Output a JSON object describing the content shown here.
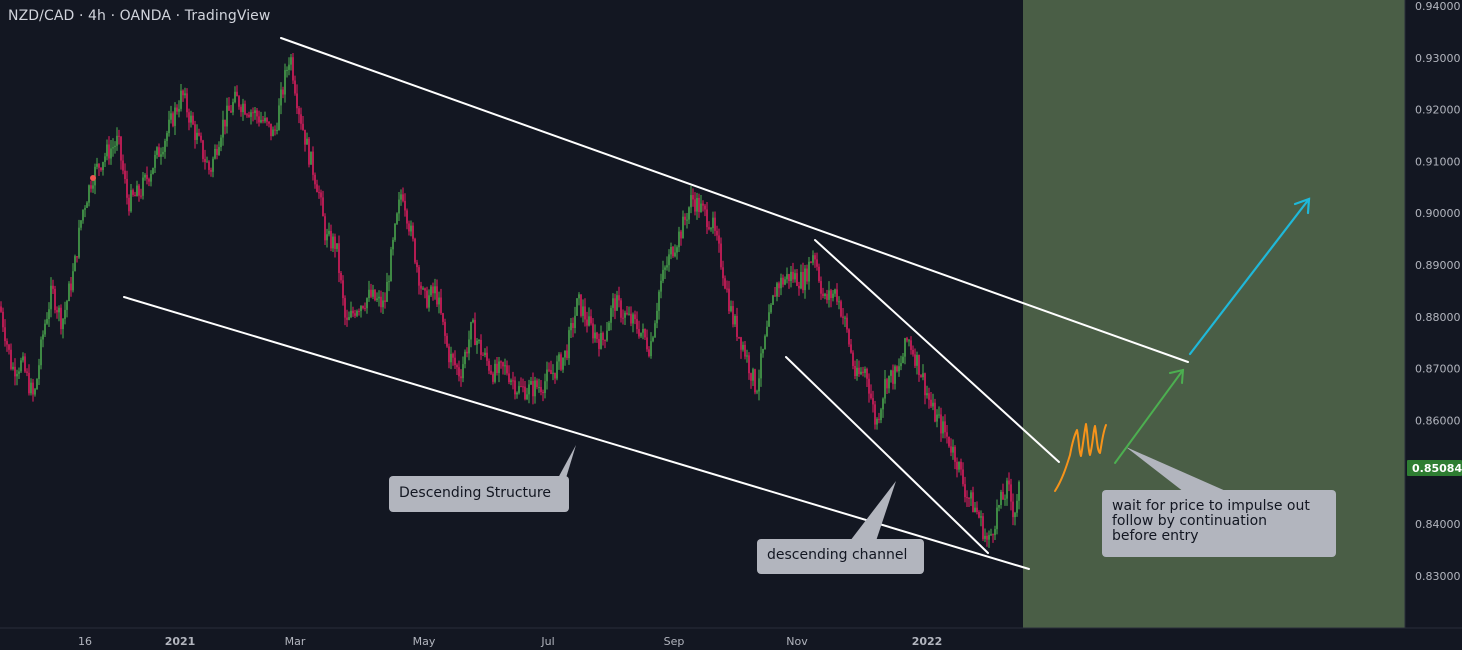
{
  "header": {
    "title": "NZD/CAD · 4h · OANDA · TradingView"
  },
  "chart_data": {
    "type": "candlestick",
    "symbol": "NZD/CAD",
    "timeframe": "4h",
    "source": "OANDA",
    "ylim": [
      0.82,
      0.94
    ],
    "y_ticks": [
      "0.94000",
      "0.93000",
      "0.92000",
      "0.91000",
      "0.90000",
      "0.89000",
      "0.88000",
      "0.87000",
      "0.86000",
      "0.85000",
      "0.84000",
      "0.83000"
    ],
    "x_ticks": [
      "16",
      "2021",
      "Mar",
      "May",
      "Jul",
      "Sep",
      "Nov",
      "2022"
    ],
    "last_price": "0.85084",
    "colors": {
      "background": "#131722",
      "up": "#26a69a",
      "up_candle": "#4caf50",
      "down_candle": "#e91e63",
      "lines": "#ffffff",
      "zone": "#4a5e46",
      "price_tag": "#2e7d32",
      "impulse_scribble": "#f7931a",
      "green_arrow": "#4caf50",
      "cyan_arrow": "#00bcd4",
      "axis_text": "#b2b5be"
    },
    "path_points": [
      [
        0,
        0.882
      ],
      [
        12,
        0.87
      ],
      [
        22,
        0.871
      ],
      [
        34,
        0.864
      ],
      [
        44,
        0.878
      ],
      [
        52,
        0.885
      ],
      [
        62,
        0.879
      ],
      [
        74,
        0.889
      ],
      [
        82,
        0.9
      ],
      [
        92,
        0.907
      ],
      [
        104,
        0.911
      ],
      [
        118,
        0.914
      ],
      [
        128,
        0.902
      ],
      [
        140,
        0.904
      ],
      [
        152,
        0.909
      ],
      [
        166,
        0.915
      ],
      [
        182,
        0.923
      ],
      [
        196,
        0.915
      ],
      [
        210,
        0.908
      ],
      [
        222,
        0.917
      ],
      [
        236,
        0.922
      ],
      [
        250,
        0.92
      ],
      [
        262,
        0.918
      ],
      [
        274,
        0.915
      ],
      [
        282,
        0.923
      ],
      [
        290,
        0.931
      ],
      [
        298,
        0.921
      ],
      [
        308,
        0.912
      ],
      [
        318,
        0.905
      ],
      [
        326,
        0.895
      ],
      [
        336,
        0.894
      ],
      [
        346,
        0.878
      ],
      [
        356,
        0.882
      ],
      [
        370,
        0.884
      ],
      [
        384,
        0.882
      ],
      [
        394,
        0.895
      ],
      [
        402,
        0.905
      ],
      [
        412,
        0.895
      ],
      [
        424,
        0.883
      ],
      [
        436,
        0.885
      ],
      [
        448,
        0.873
      ],
      [
        460,
        0.869
      ],
      [
        472,
        0.878
      ],
      [
        482,
        0.873
      ],
      [
        494,
        0.869
      ],
      [
        506,
        0.87
      ],
      [
        518,
        0.866
      ],
      [
        530,
        0.866
      ],
      [
        542,
        0.867
      ],
      [
        556,
        0.87
      ],
      [
        566,
        0.873
      ],
      [
        578,
        0.883
      ],
      [
        590,
        0.878
      ],
      [
        602,
        0.875
      ],
      [
        614,
        0.883
      ],
      [
        626,
        0.88
      ],
      [
        638,
        0.878
      ],
      [
        650,
        0.874
      ],
      [
        660,
        0.886
      ],
      [
        672,
        0.893
      ],
      [
        682,
        0.897
      ],
      [
        692,
        0.903
      ],
      [
        700,
        0.901
      ],
      [
        712,
        0.898
      ],
      [
        722,
        0.89
      ],
      [
        732,
        0.88
      ],
      [
        744,
        0.874
      ],
      [
        756,
        0.866
      ],
      [
        766,
        0.876
      ],
      [
        776,
        0.886
      ],
      [
        790,
        0.888
      ],
      [
        804,
        0.887
      ],
      [
        814,
        0.893
      ],
      [
        824,
        0.883
      ],
      [
        836,
        0.885
      ],
      [
        846,
        0.878
      ],
      [
        856,
        0.868
      ],
      [
        866,
        0.87
      ],
      [
        876,
        0.859
      ],
      [
        886,
        0.868
      ],
      [
        898,
        0.869
      ],
      [
        908,
        0.876
      ],
      [
        920,
        0.87
      ],
      [
        932,
        0.862
      ],
      [
        944,
        0.858
      ],
      [
        956,
        0.853
      ],
      [
        966,
        0.846
      ],
      [
        978,
        0.842
      ],
      [
        988,
        0.836
      ],
      [
        998,
        0.843
      ],
      [
        1008,
        0.847
      ],
      [
        1014,
        0.842
      ],
      [
        1020,
        0.848
      ]
    ],
    "annotations": {
      "descending_structure_label": "Descending Structure",
      "descending_channel_label": "descending channel",
      "note": "wait for price to impulse out\nfollow by continuation\nbefore entry"
    }
  }
}
